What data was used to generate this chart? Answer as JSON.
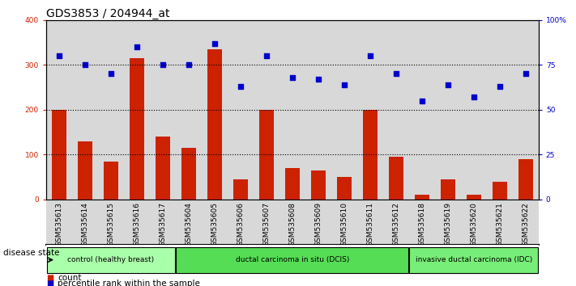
{
  "title": "GDS3853 / 204944_at",
  "samples": [
    "GSM535613",
    "GSM535614",
    "GSM535615",
    "GSM535616",
    "GSM535617",
    "GSM535604",
    "GSM535605",
    "GSM535606",
    "GSM535607",
    "GSM535608",
    "GSM535609",
    "GSM535610",
    "GSM535611",
    "GSM535612",
    "GSM535618",
    "GSM535619",
    "GSM535620",
    "GSM535621",
    "GSM535622"
  ],
  "counts": [
    200,
    130,
    85,
    315,
    140,
    115,
    335,
    45,
    200,
    70,
    65,
    50,
    200,
    95,
    10,
    45,
    10,
    40,
    90
  ],
  "percentiles": [
    80,
    75,
    70,
    85,
    75,
    75,
    87,
    63,
    80,
    68,
    67,
    64,
    80,
    70,
    55,
    64,
    57,
    63,
    70
  ],
  "bar_color": "#cc2200",
  "dot_color": "#0000cc",
  "ylim_left": [
    0,
    400
  ],
  "ylim_right": [
    0,
    100
  ],
  "yticks_left": [
    0,
    100,
    200,
    300,
    400
  ],
  "yticks_right": [
    0,
    25,
    50,
    75,
    100
  ],
  "yticklabels_right": [
    "0",
    "25",
    "50",
    "75",
    "100%"
  ],
  "groups": [
    {
      "label": "control (healthy breast)",
      "start": 0,
      "end": 4,
      "color": "#aaffaa"
    },
    {
      "label": "ductal carcinoma in situ (DCIS)",
      "start": 5,
      "end": 13,
      "color": "#55dd55"
    },
    {
      "label": "invasive ductal carcinoma (IDC)",
      "start": 14,
      "end": 18,
      "color": "#77ee77"
    }
  ],
  "legend_count_label": "count",
  "legend_pct_label": "percentile rank within the sample",
  "disease_state_label": "disease state",
  "col_bg": "#d8d8d8",
  "plot_bg": "#ffffff",
  "title_fontsize": 10,
  "tick_fontsize": 6.5,
  "label_fontsize": 7.5
}
